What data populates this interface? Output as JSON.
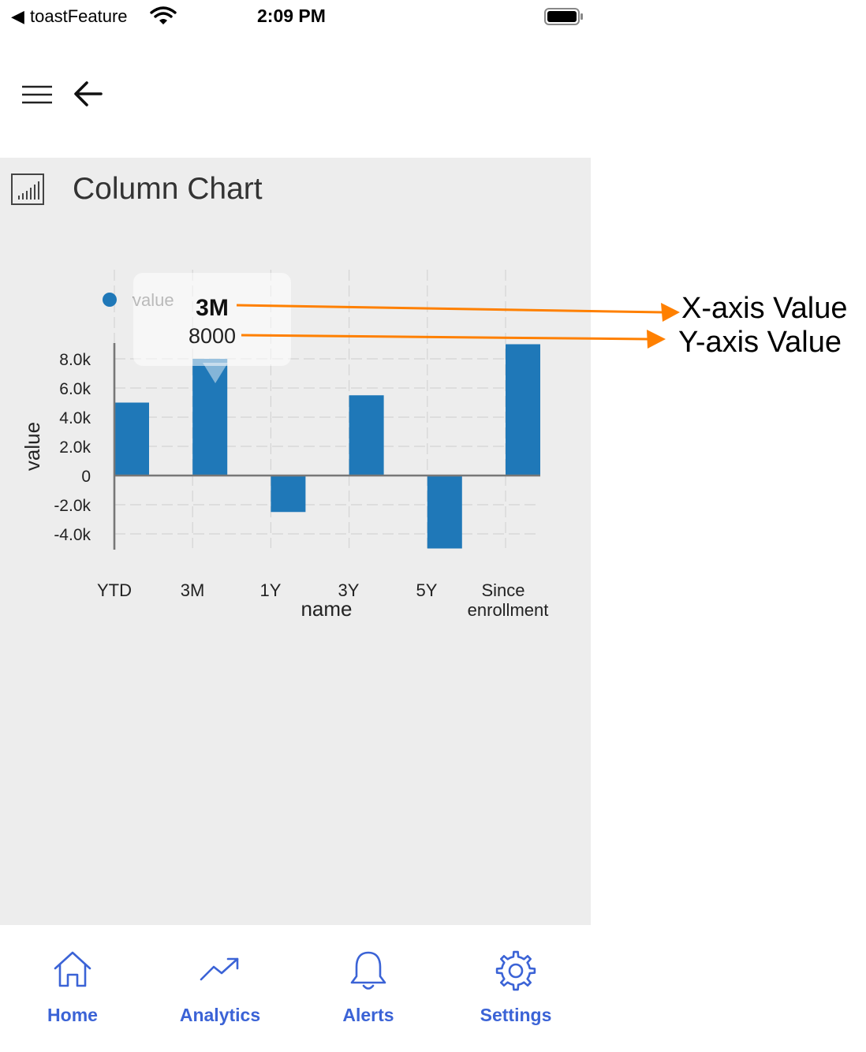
{
  "status_bar": {
    "back_glyph": "◀",
    "app_name": "toastFeature",
    "time": "2:09 PM",
    "icons": [
      "wifi-icon",
      "battery-icon"
    ]
  },
  "nav": {
    "icons": [
      "menu-icon",
      "back-arrow-icon"
    ]
  },
  "panel": {
    "title": "Column Chart",
    "icon": "bar-chart-icon",
    "background": "#ededed"
  },
  "tooltip": {
    "x_value": "3M",
    "y_value": "8000"
  },
  "annotations": {
    "x_axis_label": "X-axis Value",
    "y_axis_label": "Y-axis Value",
    "arrow_color": "#ff8000"
  },
  "chart_data": {
    "type": "bar",
    "categories": [
      "YTD",
      "3M",
      "1Y",
      "3Y",
      "5Y",
      "Since enrollment"
    ],
    "series": [
      {
        "name": "value",
        "values": [
          5000,
          8000,
          -2500,
          5500,
          -5000,
          9000
        ]
      }
    ],
    "xlabel": "name",
    "ylabel": "value",
    "yticks": [
      8000,
      6000,
      4000,
      2000,
      0,
      -2000,
      -4000
    ],
    "ytick_labels": [
      "8.0k",
      "6.0k",
      "4.0k",
      "2.0k",
      "0",
      "-2.0k",
      "-4.0k"
    ],
    "ylim": [
      -5000,
      9000
    ],
    "legend_position": "top-left",
    "grid": true,
    "bar_color": "#1f78b8"
  },
  "tabbar": {
    "tabs": [
      {
        "label": "Home",
        "icon": "home-icon"
      },
      {
        "label": "Analytics",
        "icon": "trending-up-icon"
      },
      {
        "label": "Alerts",
        "icon": "bell-icon"
      },
      {
        "label": "Settings",
        "icon": "gear-icon"
      }
    ],
    "active_color": "#3b63d6"
  }
}
